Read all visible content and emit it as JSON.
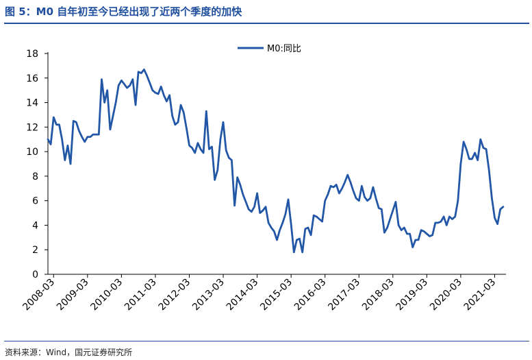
{
  "figure": {
    "title": "图 5：M0 自年初至今已经出现了近两个季度的加快",
    "source": "资料来源：Wind，国元证券研究所"
  },
  "colors": {
    "accent": "#1f4e9e",
    "series": "#2256a6"
  },
  "chart_data": {
    "type": "line",
    "title": "",
    "xlabel": "",
    "ylabel": "",
    "ylim": [
      0,
      18
    ],
    "yticks": [
      "0",
      "2",
      "4",
      "6",
      "8",
      "10",
      "12",
      "14",
      "16",
      "18"
    ],
    "xlim": [
      "2008-01",
      "2021-07"
    ],
    "xticks": [
      "2008-03",
      "2009-03",
      "2010-03",
      "2011-03",
      "2012-03",
      "2013-03",
      "2014-03",
      "2015-03",
      "2016-03",
      "2017-03",
      "2018-03",
      "2019-03",
      "2020-03",
      "2021-03"
    ],
    "grid": false,
    "legend_position": "top-center",
    "series": [
      {
        "name": "M0:同比",
        "x": [
          "2008-01",
          "2008-02",
          "2008-03",
          "2008-04",
          "2008-05",
          "2008-06",
          "2008-07",
          "2008-08",
          "2008-09",
          "2008-10",
          "2008-11",
          "2008-12",
          "2009-01",
          "2009-02",
          "2009-03",
          "2009-04",
          "2009-05",
          "2009-06",
          "2009-07",
          "2009-08",
          "2009-09",
          "2009-10",
          "2009-11",
          "2009-12",
          "2010-01",
          "2010-02",
          "2010-03",
          "2010-04",
          "2010-05",
          "2010-06",
          "2010-07",
          "2010-08",
          "2010-09",
          "2010-10",
          "2010-11",
          "2010-12",
          "2011-01",
          "2011-02",
          "2011-03",
          "2011-04",
          "2011-05",
          "2011-06",
          "2011-07",
          "2011-08",
          "2011-09",
          "2011-10",
          "2011-11",
          "2011-12",
          "2012-01",
          "2012-02",
          "2012-03",
          "2012-04",
          "2012-05",
          "2012-06",
          "2012-07",
          "2012-08",
          "2012-09",
          "2012-10",
          "2012-11",
          "2012-12",
          "2013-01",
          "2013-02",
          "2013-03",
          "2013-04",
          "2013-05",
          "2013-06",
          "2013-07",
          "2013-08",
          "2013-09",
          "2013-10",
          "2013-11",
          "2013-12",
          "2014-01",
          "2014-02",
          "2014-03",
          "2014-04",
          "2014-05",
          "2014-06",
          "2014-07",
          "2014-08",
          "2014-09",
          "2014-10",
          "2014-11",
          "2014-12",
          "2015-01",
          "2015-02",
          "2015-03",
          "2015-04",
          "2015-05",
          "2015-06",
          "2015-07",
          "2015-08",
          "2015-09",
          "2015-10",
          "2015-11",
          "2015-12",
          "2016-01",
          "2016-02",
          "2016-03",
          "2016-04",
          "2016-05",
          "2016-06",
          "2016-07",
          "2016-08",
          "2016-09",
          "2016-10",
          "2016-11",
          "2016-12",
          "2017-01",
          "2017-02",
          "2017-03",
          "2017-04",
          "2017-05",
          "2017-06",
          "2017-07",
          "2017-08",
          "2017-09",
          "2017-10",
          "2017-11",
          "2017-12",
          "2018-01",
          "2018-02",
          "2018-03",
          "2018-04",
          "2018-05",
          "2018-06",
          "2018-07",
          "2018-08",
          "2018-09",
          "2018-10",
          "2018-11",
          "2018-12",
          "2019-01",
          "2019-02",
          "2019-03",
          "2019-04",
          "2019-05",
          "2019-06",
          "2019-07",
          "2019-08",
          "2019-09",
          "2019-10",
          "2019-11",
          "2019-12",
          "2020-01",
          "2020-02",
          "2020-03",
          "2020-04",
          "2020-05",
          "2020-06",
          "2020-07",
          "2020-08",
          "2020-09",
          "2020-10",
          "2020-11",
          "2020-12",
          "2021-01",
          "2021-02",
          "2021-03",
          "2021-04",
          "2021-05",
          "2021-06"
        ],
        "values": [
          11.0,
          10.6,
          12.8,
          12.2,
          12.2,
          11.0,
          9.3,
          10.5,
          9.0,
          12.5,
          12.4,
          11.7,
          11.2,
          10.8,
          11.2,
          11.2,
          11.4,
          11.4,
          11.4,
          15.9,
          14.0,
          15.0,
          11.8,
          12.9,
          14.0,
          15.4,
          15.8,
          15.5,
          15.2,
          15.4,
          15.9,
          13.8,
          16.5,
          16.4,
          16.7,
          16.2,
          15.6,
          15.0,
          14.8,
          14.7,
          15.3,
          14.6,
          14.1,
          14.6,
          12.9,
          12.2,
          12.4,
          13.8,
          13.2,
          11.9,
          10.5,
          10.3,
          9.9,
          10.7,
          10.2,
          9.9,
          13.3,
          10.2,
          10.4,
          7.7,
          8.5,
          11.0,
          12.4,
          10.1,
          9.5,
          9.3,
          5.6,
          7.9,
          7.3,
          6.5,
          5.9,
          5.3,
          5.1,
          5.5,
          6.6,
          5.0,
          5.2,
          5.5,
          4.2,
          3.8,
          3.5,
          2.8,
          3.6,
          4.2,
          4.9,
          6.1,
          4.1,
          1.8,
          2.8,
          2.9,
          1.8,
          3.7,
          3.8,
          3.2,
          4.8,
          4.7,
          4.5,
          4.3,
          6.0,
          6.5,
          7.2,
          7.1,
          7.3,
          6.6,
          7.0,
          7.5,
          8.1,
          7.5,
          6.8,
          6.2,
          6.0,
          7.2,
          6.3,
          6.0,
          6.2,
          7.1,
          6.2,
          5.4,
          5.3,
          3.4,
          3.8,
          4.5,
          5.2,
          5.9,
          4.0,
          3.6,
          3.8,
          3.3,
          3.3,
          2.2,
          2.8,
          2.8,
          3.6,
          3.5,
          3.3,
          3.1,
          3.2,
          4.2,
          4.2,
          4.3,
          4.7,
          4.0,
          4.7,
          4.5,
          4.7,
          6.0,
          9.0,
          10.8,
          10.2,
          9.4,
          9.4,
          9.9,
          9.3,
          11.0,
          10.3,
          10.2,
          8.5,
          6.2,
          4.6,
          4.1,
          5.3,
          5.5
        ]
      }
    ]
  }
}
